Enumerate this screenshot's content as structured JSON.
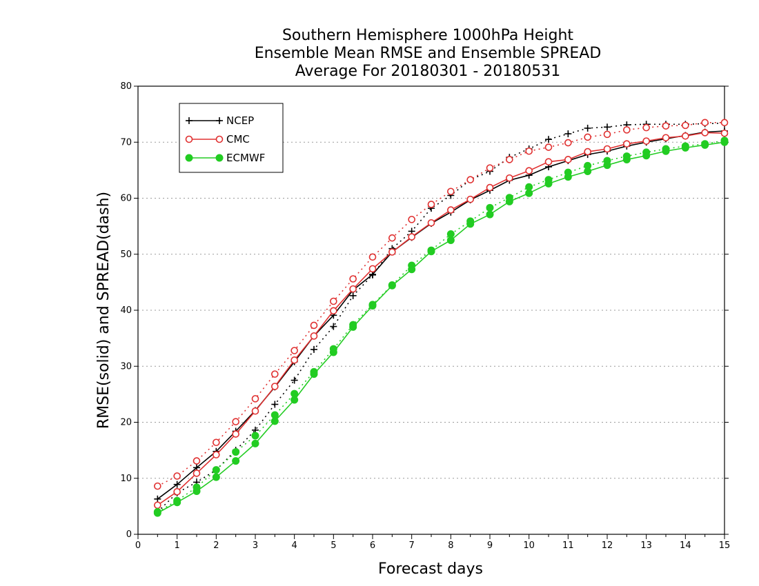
{
  "chart_data": {
    "type": "line",
    "title": [
      "Southern Hemisphere 1000hPa Height",
      "Ensemble Mean RMSE and Ensemble SPREAD",
      "Average For 20180301 - 20180531"
    ],
    "xlabel": "Forecast days",
    "ylabel": "RMSE(solid) and SPREAD(dash)",
    "xlim": [
      0,
      15
    ],
    "ylim": [
      0,
      80
    ],
    "xticks": [
      "0",
      "1",
      "2",
      "3",
      "4",
      "5",
      "6",
      "7",
      "8",
      "9",
      "10",
      "11",
      "12",
      "13",
      "14",
      "15"
    ],
    "yticks": [
      "0",
      "10",
      "20",
      "30",
      "40",
      "50",
      "60",
      "70",
      "80"
    ],
    "grid": "horizontal dotted",
    "legend_position": "top-left",
    "x": [
      0.5,
      1,
      1.5,
      2,
      2.5,
      3,
      3.5,
      4,
      4.5,
      5,
      5.5,
      6,
      6.5,
      7,
      7.5,
      8,
      8.5,
      9,
      9.5,
      10,
      10.5,
      11,
      11.5,
      12,
      12.5,
      13,
      13.5,
      14,
      14.5,
      15
    ],
    "series": [
      {
        "name": "NCEP",
        "color": "#000000",
        "marker": "plus",
        "rmse": [
          6.3,
          8.9,
          11.9,
          14.8,
          18.4,
          22.1,
          26.3,
          30.8,
          35.4,
          39.1,
          43.6,
          46.4,
          50.4,
          53.0,
          55.5,
          57.5,
          59.7,
          61.4,
          63.2,
          64.1,
          65.6,
          66.7,
          67.8,
          68.4,
          69.3,
          70.0,
          70.6,
          71.2,
          71.8,
          72.0
        ],
        "spread": [
          4.0,
          7.4,
          9.3,
          11.5,
          15.0,
          18.6,
          23.2,
          27.5,
          33.0,
          37.1,
          42.6,
          46.3,
          51.0,
          54.1,
          58.2,
          60.5,
          63.3,
          64.8,
          67.3,
          68.8,
          70.5,
          71.5,
          72.5,
          72.7,
          73.1,
          73.2,
          73.2,
          73.2,
          73.3,
          73.4
        ]
      },
      {
        "name": "CMC",
        "color": "#e03030",
        "marker": "open-circle",
        "rmse": [
          5.2,
          7.6,
          10.9,
          14.2,
          17.9,
          22.0,
          26.4,
          31.1,
          35.4,
          39.9,
          43.8,
          47.4,
          50.4,
          53.1,
          55.6,
          57.9,
          59.8,
          61.9,
          63.6,
          64.9,
          66.5,
          66.9,
          68.3,
          68.8,
          69.7,
          70.2,
          70.8,
          71.1,
          71.7,
          71.6
        ],
        "spread": [
          8.6,
          10.4,
          13.1,
          16.4,
          20.1,
          24.2,
          28.6,
          32.8,
          37.3,
          41.6,
          45.6,
          49.5,
          52.9,
          56.2,
          58.9,
          61.2,
          63.3,
          65.4,
          66.9,
          68.4,
          69.1,
          69.9,
          70.9,
          71.4,
          72.2,
          72.6,
          72.9,
          73.0,
          73.5,
          73.5
        ]
      },
      {
        "name": "ECMWF",
        "color": "#22cc22",
        "marker": "filled-circle",
        "rmse": [
          3.8,
          5.7,
          7.7,
          10.2,
          13.1,
          16.2,
          20.2,
          24.0,
          28.6,
          32.5,
          37.0,
          40.8,
          44.4,
          47.3,
          50.5,
          52.5,
          55.4,
          57.1,
          59.4,
          60.9,
          62.6,
          63.8,
          64.8,
          65.9,
          66.9,
          67.6,
          68.4,
          69.0,
          69.5,
          70.0
        ],
        "spread": [
          4.0,
          6.0,
          8.4,
          11.5,
          14.7,
          17.6,
          21.3,
          25.1,
          29.0,
          33.1,
          37.4,
          41.0,
          44.5,
          48.0,
          50.7,
          53.6,
          55.9,
          58.3,
          60.1,
          62.0,
          63.3,
          64.6,
          65.8,
          66.7,
          67.5,
          68.2,
          68.8,
          69.3,
          69.7,
          70.3
        ]
      }
    ]
  }
}
